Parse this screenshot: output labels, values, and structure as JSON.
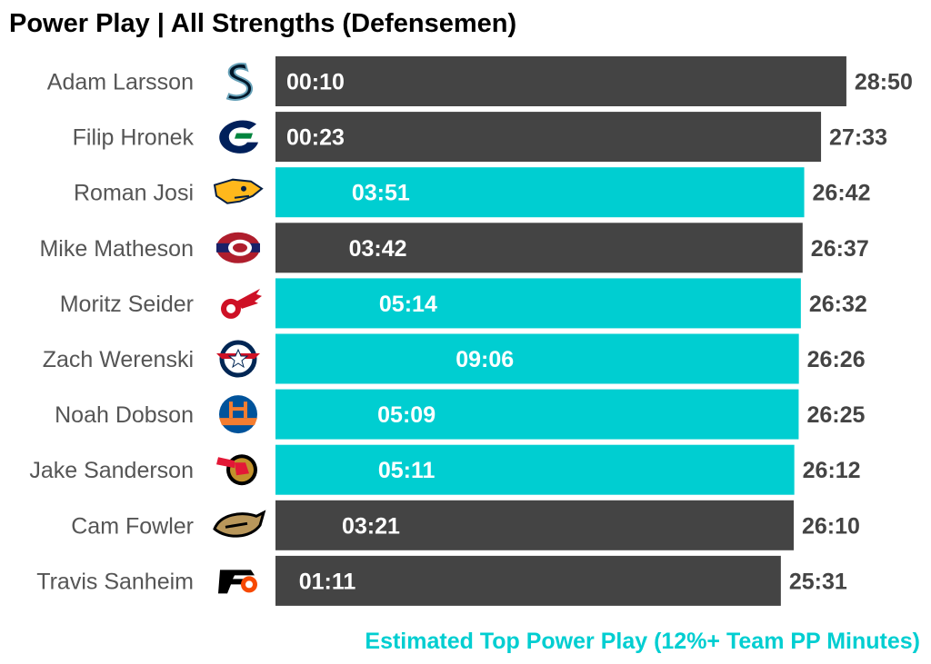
{
  "chart_data": {
    "type": "bar",
    "orientation": "horizontal",
    "title": "Power Play | All Strengths (Defensemen)",
    "caption": "Estimated Top Power Play (12%+ Team PP Minutes)",
    "colors": {
      "top_pp": "#00CED1",
      "other": "#444444",
      "total_label": "#444444",
      "player_label": "#555555",
      "title": "#000000"
    },
    "xlim_minutes": [
      0,
      29
    ],
    "players": [
      {
        "name": "Adam Larsson",
        "team": "Seattle Kraken",
        "logo": "kraken-logo",
        "total": "28:50",
        "total_minutes": 28.83,
        "pp": "00:10",
        "pp_minutes": 0.17,
        "top_pp": false
      },
      {
        "name": "Filip Hronek",
        "team": "Vancouver Canucks",
        "logo": "canucks-logo",
        "total": "27:33",
        "total_minutes": 27.55,
        "pp": "00:23",
        "pp_minutes": 0.38,
        "top_pp": false
      },
      {
        "name": "Roman Josi",
        "team": "Nashville Predators",
        "logo": "predators-logo",
        "total": "26:42",
        "total_minutes": 26.7,
        "pp": "03:51",
        "pp_minutes": 3.85,
        "top_pp": true
      },
      {
        "name": "Mike Matheson",
        "team": "Montreal Canadiens",
        "logo": "canadiens-logo",
        "total": "26:37",
        "total_minutes": 26.62,
        "pp": "03:42",
        "pp_minutes": 3.7,
        "top_pp": false
      },
      {
        "name": "Moritz Seider",
        "team": "Detroit Red Wings",
        "logo": "red-wings-logo",
        "total": "26:32",
        "total_minutes": 26.53,
        "pp": "05:14",
        "pp_minutes": 5.23,
        "top_pp": true
      },
      {
        "name": "Zach Werenski",
        "team": "Columbus Blue Jackets",
        "logo": "blue-jackets-logo",
        "total": "26:26",
        "total_minutes": 26.43,
        "pp": "09:06",
        "pp_minutes": 9.1,
        "top_pp": true
      },
      {
        "name": "Noah Dobson",
        "team": "New York Islanders",
        "logo": "islanders-logo",
        "total": "26:25",
        "total_minutes": 26.42,
        "pp": "05:09",
        "pp_minutes": 5.15,
        "top_pp": true
      },
      {
        "name": "Jake Sanderson",
        "team": "Ottawa Senators",
        "logo": "senators-logo",
        "total": "26:12",
        "total_minutes": 26.2,
        "pp": "05:11",
        "pp_minutes": 5.18,
        "top_pp": true
      },
      {
        "name": "Cam Fowler",
        "team": "Anaheim Ducks",
        "logo": "ducks-logo",
        "total": "26:10",
        "total_minutes": 26.17,
        "pp": "03:21",
        "pp_minutes": 3.35,
        "top_pp": false
      },
      {
        "name": "Travis Sanheim",
        "team": "Philadelphia Flyers",
        "logo": "flyers-logo",
        "total": "25:31",
        "total_minutes": 25.52,
        "pp": "01:11",
        "pp_minutes": 1.18,
        "top_pp": false
      }
    ]
  }
}
